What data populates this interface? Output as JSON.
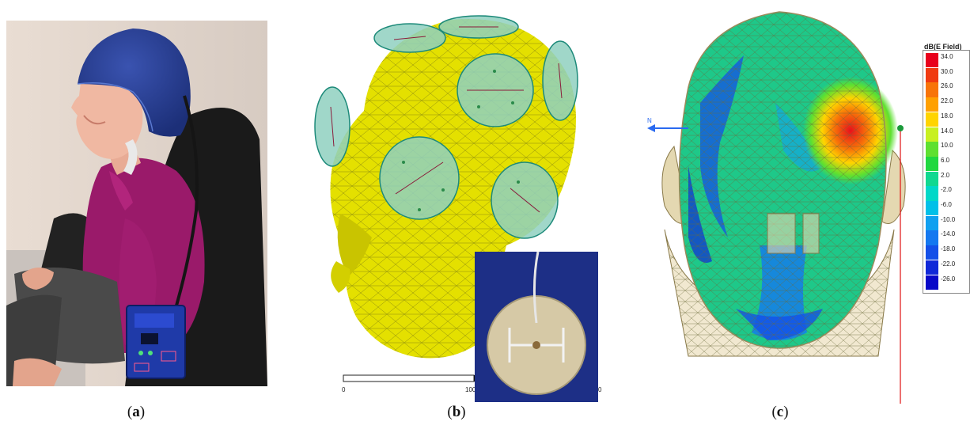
{
  "captions": {
    "a": {
      "open": "(",
      "letter": "a",
      "close": ")"
    },
    "b": {
      "open": "(",
      "letter": "b",
      "close": ")"
    },
    "c": {
      "open": "(",
      "letter": "c",
      "close": ")"
    }
  },
  "scale_bar": {
    "labels": [
      "0",
      "100",
      "0"
    ]
  },
  "axis_label": "N",
  "legend": {
    "title": "dB(E Field)",
    "entries": [
      {
        "label": "34.0",
        "color": "#e8001c"
      },
      {
        "label": "30.0",
        "color": "#f03a10"
      },
      {
        "label": "26.0",
        "color": "#f87408"
      },
      {
        "label": "22.0",
        "color": "#ffa000"
      },
      {
        "label": "18.0",
        "color": "#ffd400"
      },
      {
        "label": "14.0",
        "color": "#c8f020"
      },
      {
        "label": "10.0",
        "color": "#5ee030"
      },
      {
        "label": "6.0",
        "color": "#20d840"
      },
      {
        "label": "2.0",
        "color": "#10d890"
      },
      {
        "label": "-2.0",
        "color": "#00d8c8"
      },
      {
        "label": "-6.0",
        "color": "#00c0e8"
      },
      {
        "label": "-10.0",
        "color": "#10a0f0"
      },
      {
        "label": "-14.0",
        "color": "#1478f0"
      },
      {
        "label": "-18.0",
        "color": "#1450e8"
      },
      {
        "label": "-22.0",
        "color": "#1028d8"
      },
      {
        "label": "-26.0",
        "color": "#0808c8"
      }
    ]
  }
}
